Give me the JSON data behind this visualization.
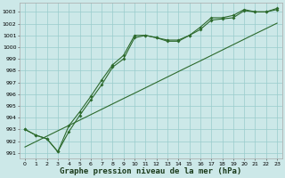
{
  "title": "Graphe pression niveau de la mer (hPa)",
  "hours": [
    0,
    1,
    2,
    3,
    4,
    5,
    6,
    7,
    8,
    9,
    10,
    11,
    12,
    13,
    14,
    15,
    16,
    17,
    18,
    19,
    20,
    21,
    22,
    23
  ],
  "line_measured1": [
    993.0,
    992.5,
    992.2,
    991.1,
    992.8,
    994.2,
    995.5,
    996.8,
    998.3,
    999.0,
    1000.8,
    1001.0,
    1000.8,
    1000.5,
    1000.5,
    1001.0,
    1001.5,
    1002.3,
    1002.4,
    1002.5,
    1003.1,
    1003.0,
    1003.0,
    1003.2
  ],
  "line_measured2": [
    993.0,
    992.5,
    992.2,
    991.1,
    993.3,
    994.5,
    995.8,
    997.2,
    998.5,
    999.3,
    1001.0,
    1001.0,
    1000.8,
    1000.6,
    1000.6,
    1001.0,
    1001.7,
    1002.5,
    1002.5,
    1002.7,
    1003.2,
    1003.0,
    1003.0,
    1003.3
  ],
  "line_trend": [
    991.5,
    991.96,
    992.42,
    992.88,
    993.33,
    993.79,
    994.25,
    994.71,
    995.17,
    995.63,
    996.08,
    996.54,
    997.0,
    997.46,
    997.92,
    998.38,
    998.83,
    999.29,
    999.75,
    1000.21,
    1000.67,
    1001.13,
    1001.58,
    1002.04
  ],
  "ylim": [
    990.5,
    1003.8
  ],
  "yticks": [
    991,
    992,
    993,
    994,
    995,
    996,
    997,
    998,
    999,
    1000,
    1001,
    1002,
    1003
  ],
  "bg_color": "#cce8e8",
  "grid_color": "#99cccc",
  "line_color": "#2d6a2d",
  "marker": "D",
  "marker_size": 2.0,
  "line_width": 0.8,
  "title_fontsize": 6.5,
  "tick_fontsize": 4.5
}
